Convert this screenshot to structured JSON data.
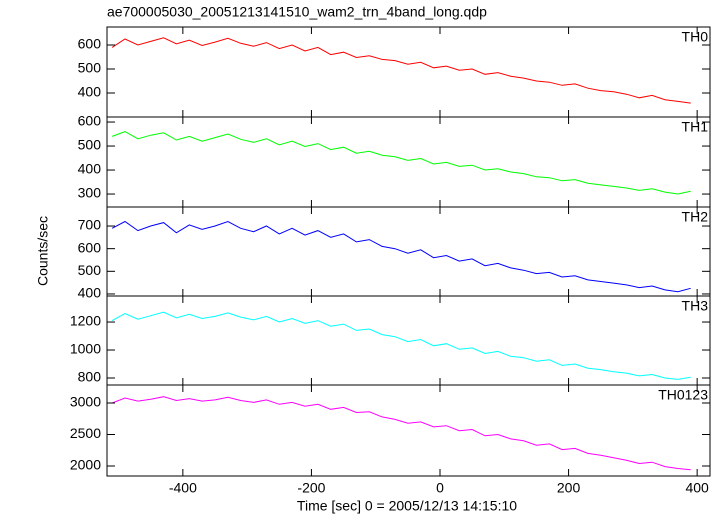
{
  "chart_data": {
    "type": "line",
    "title": "ae700005030_20051213141510_wam2_trn_4band_long.qdp",
    "x_label": "Time [sec] 0 = 2005/12/13 14:15:10",
    "y_label": "Counts/sec",
    "xlim": [
      -518,
      420
    ],
    "xticks": [
      -400,
      -200,
      0,
      200,
      400
    ],
    "x": [
      -510,
      -490,
      -470,
      -450,
      -430,
      -410,
      -390,
      -370,
      -350,
      -330,
      -310,
      -290,
      -270,
      -250,
      -230,
      -210,
      -190,
      -170,
      -150,
      -130,
      -110,
      -90,
      -70,
      -50,
      -30,
      -10,
      10,
      30,
      50,
      70,
      90,
      110,
      130,
      150,
      170,
      190,
      210,
      230,
      250,
      270,
      290,
      310,
      330,
      350,
      370,
      390
    ],
    "series": [
      {
        "name": "TH0",
        "color": "#ff0000",
        "ylim": [
          300,
          675
        ],
        "yticks": [
          400,
          500,
          600
        ],
        "values": [
          590,
          625,
          600,
          615,
          630,
          605,
          620,
          598,
          612,
          628,
          607,
          595,
          610,
          585,
          600,
          575,
          590,
          560,
          570,
          548,
          555,
          540,
          535,
          520,
          528,
          505,
          512,
          495,
          500,
          478,
          485,
          470,
          462,
          450,
          445,
          432,
          438,
          420,
          410,
          405,
          395,
          380,
          390,
          372,
          365,
          358
        ]
      },
      {
        "name": "TH1",
        "color": "#00ff00",
        "ylim": [
          246,
          621
        ],
        "yticks": [
          300,
          400,
          500,
          600
        ],
        "values": [
          540,
          560,
          530,
          545,
          555,
          525,
          540,
          520,
          535,
          550,
          528,
          515,
          530,
          505,
          520,
          498,
          510,
          485,
          495,
          470,
          478,
          462,
          455,
          440,
          448,
          425,
          432,
          415,
          420,
          400,
          405,
          392,
          385,
          372,
          368,
          355,
          360,
          345,
          338,
          332,
          325,
          315,
          322,
          308,
          300,
          312
        ]
      },
      {
        "name": "TH2",
        "color": "#0000ff",
        "ylim": [
          391,
          784
        ],
        "yticks": [
          400,
          500,
          600,
          700
        ],
        "values": [
          690,
          720,
          680,
          700,
          715,
          670,
          705,
          685,
          700,
          720,
          690,
          675,
          700,
          665,
          690,
          660,
          680,
          650,
          665,
          630,
          640,
          610,
          600,
          580,
          595,
          560,
          570,
          545,
          555,
          525,
          535,
          515,
          505,
          490,
          495,
          475,
          480,
          462,
          455,
          448,
          440,
          428,
          435,
          418,
          410,
          425
        ]
      },
      {
        "name": "TH3",
        "color": "#00ffff",
        "ylim": [
          750,
          1386
        ],
        "yticks": [
          800,
          1000,
          1200
        ],
        "values": [
          1210,
          1260,
          1220,
          1245,
          1270,
          1230,
          1255,
          1225,
          1240,
          1265,
          1235,
          1215,
          1240,
          1200,
          1225,
          1190,
          1210,
          1170,
          1185,
          1140,
          1150,
          1110,
          1095,
          1060,
          1075,
          1030,
          1045,
          1005,
          1015,
          975,
          990,
          955,
          945,
          920,
          930,
          890,
          900,
          870,
          860,
          845,
          835,
          815,
          825,
          800,
          790,
          805
        ]
      },
      {
        "name": "TH0123",
        "color": "#ff00ff",
        "ylim": [
          1841,
          3286
        ],
        "yticks": [
          2000,
          2500,
          3000
        ],
        "values": [
          3000,
          3080,
          3030,
          3060,
          3100,
          3040,
          3070,
          3030,
          3050,
          3090,
          3040,
          3010,
          3050,
          2980,
          3010,
          2950,
          2980,
          2900,
          2930,
          2850,
          2860,
          2780,
          2740,
          2680,
          2700,
          2620,
          2640,
          2560,
          2580,
          2480,
          2500,
          2430,
          2400,
          2330,
          2350,
          2260,
          2280,
          2200,
          2170,
          2130,
          2090,
          2040,
          2060,
          1990,
          1960,
          1940
        ]
      }
    ]
  }
}
